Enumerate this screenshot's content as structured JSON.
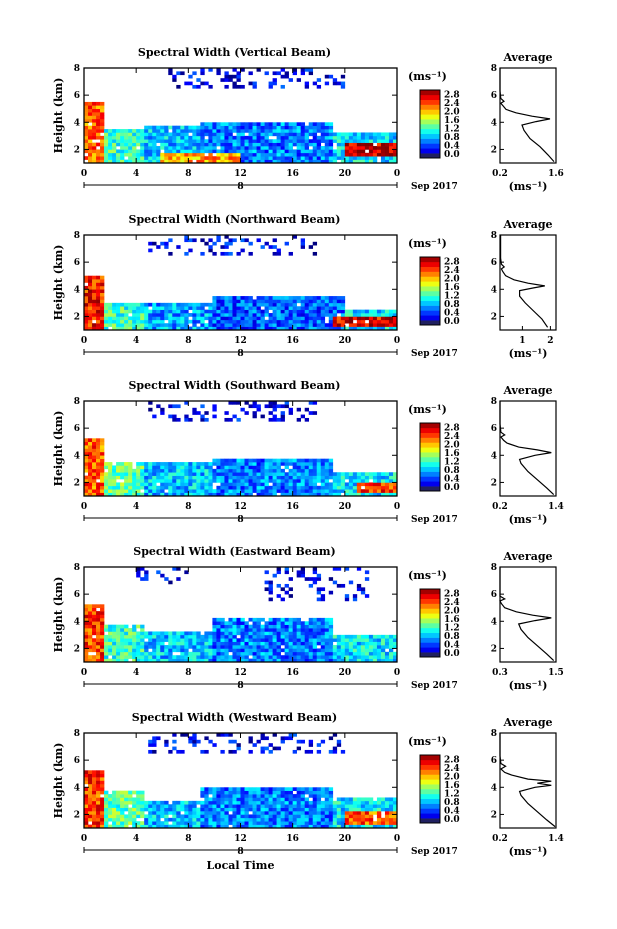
{
  "chart_data": [
    {
      "type": "heatmap",
      "title": "Spectral Width (Vertical Beam)",
      "ylabel": "Height (km)",
      "xticks": [
        "0",
        "4",
        "8",
        "12",
        "16",
        "20",
        "0"
      ],
      "day_label": "8",
      "date_label": "Sep 2017",
      "yticks": [
        "2",
        "4",
        "6",
        "8"
      ],
      "ylim": [
        1,
        8
      ],
      "xlim": [
        0,
        24
      ],
      "colorbar": {
        "unit": "(ms⁻¹)",
        "ticks": [
          "0.0",
          "0.4",
          "0.8",
          "1.2",
          "1.6",
          "2.0",
          "2.4",
          "2.8"
        ]
      },
      "average": {
        "title": "Average",
        "xticks": [
          "0.2",
          "1.6"
        ],
        "xlim": [
          0.2,
          1.6
        ],
        "yticks": [
          "2",
          "4",
          "6",
          "8"
        ],
        "xlabel": "(ms⁻¹)",
        "profile": [
          [
            1.55,
            1.1
          ],
          [
            1.4,
            1.6
          ],
          [
            1.2,
            2.2
          ],
          [
            0.95,
            2.8
          ],
          [
            0.8,
            3.4
          ],
          [
            0.75,
            3.8
          ],
          [
            1.1,
            4.05
          ],
          [
            1.45,
            4.25
          ],
          [
            1.0,
            4.45
          ],
          [
            0.6,
            4.7
          ],
          [
            0.35,
            4.95
          ],
          [
            0.28,
            5.2
          ],
          [
            0.22,
            5.4
          ],
          [
            0.3,
            5.55
          ],
          [
            0.22,
            5.75
          ],
          [
            0.2,
            6.3
          ],
          [
            0.2,
            8.0
          ]
        ]
      },
      "blocks": [
        {
          "t0": 0,
          "t1": 1.5,
          "h0": 1.0,
          "h1": 5.5,
          "v": 2.2
        },
        {
          "t0": 1.5,
          "t1": 4.5,
          "h0": 1.0,
          "h1": 3.5,
          "v": 1.2
        },
        {
          "t0": 4.5,
          "t1": 9,
          "h0": 1.0,
          "h1": 3.8,
          "v": 0.9
        },
        {
          "t0": 9,
          "t1": 19,
          "h0": 1.0,
          "h1": 4.1,
          "v": 0.7
        },
        {
          "t0": 19,
          "t1": 24,
          "h0": 1.0,
          "h1": 3.3,
          "v": 1.0
        },
        {
          "t0": 6,
          "t1": 12,
          "h0": 1.0,
          "h1": 1.8,
          "v": 2.0
        },
        {
          "t0": 20,
          "t1": 24,
          "h0": 1.4,
          "h1": 2.6,
          "v": 2.6
        },
        {
          "t0": 6,
          "t1": 20,
          "h0": 6.5,
          "h1": 8.0,
          "v": 0.3
        }
      ]
    },
    {
      "type": "heatmap",
      "title": "Spectral Width (Northward Beam)",
      "ylabel": "Height (km)",
      "xticks": [
        "0",
        "4",
        "8",
        "12",
        "16",
        "20",
        "0"
      ],
      "day_label": "8",
      "date_label": "Sep 2017",
      "yticks": [
        "2",
        "4",
        "6",
        "8"
      ],
      "ylim": [
        1,
        8
      ],
      "xlim": [
        0,
        24
      ],
      "colorbar": {
        "unit": "(ms⁻¹)",
        "ticks": [
          "0.0",
          "0.4",
          "0.8",
          "1.2",
          "1.6",
          "2.0",
          "2.4",
          "2.8"
        ]
      },
      "average": {
        "title": "Average",
        "xticks": [
          "1",
          "2"
        ],
        "xlim": [
          0.2,
          2.2
        ],
        "yticks": [
          "2",
          "4",
          "6",
          "8"
        ],
        "xlabel": "(ms⁻¹)",
        "profile": [
          [
            1.9,
            1.2
          ],
          [
            1.7,
            1.8
          ],
          [
            1.4,
            2.4
          ],
          [
            1.1,
            3.0
          ],
          [
            0.9,
            3.5
          ],
          [
            0.9,
            3.9
          ],
          [
            1.4,
            4.1
          ],
          [
            1.8,
            4.25
          ],
          [
            1.2,
            4.45
          ],
          [
            0.7,
            4.7
          ],
          [
            0.4,
            5.0
          ],
          [
            0.3,
            5.3
          ],
          [
            0.25,
            5.5
          ],
          [
            0.35,
            5.65
          ],
          [
            0.25,
            5.85
          ],
          [
            0.22,
            6.3
          ],
          [
            0.22,
            8.0
          ]
        ]
      },
      "blocks": [
        {
          "t0": 0,
          "t1": 1.5,
          "h0": 1.0,
          "h1": 5.0,
          "v": 2.4
        },
        {
          "t0": 1.5,
          "t1": 4.5,
          "h0": 1.0,
          "h1": 3.0,
          "v": 1.2
        },
        {
          "t0": 4.5,
          "t1": 10,
          "h0": 1.0,
          "h1": 3.0,
          "v": 0.8
        },
        {
          "t0": 10,
          "t1": 20,
          "h0": 1.0,
          "h1": 3.4,
          "v": 0.6
        },
        {
          "t0": 20,
          "t1": 24,
          "h0": 1.0,
          "h1": 2.6,
          "v": 1.0
        },
        {
          "t0": 19,
          "t1": 24,
          "h0": 1.2,
          "h1": 1.9,
          "v": 2.5
        },
        {
          "t0": 5,
          "t1": 18,
          "h0": 6.5,
          "h1": 8.0,
          "v": 0.3
        }
      ]
    },
    {
      "type": "heatmap",
      "title": "Spectral Width (Southward Beam)",
      "ylabel": "Height (km)",
      "xticks": [
        "0",
        "4",
        "8",
        "12",
        "16",
        "20",
        "0"
      ],
      "day_label": "8",
      "date_label": "Sep 2017",
      "yticks": [
        "2",
        "4",
        "6",
        "8"
      ],
      "ylim": [
        1,
        8
      ],
      "xlim": [
        0,
        24
      ],
      "colorbar": {
        "unit": "(ms⁻¹)",
        "ticks": [
          "0.0",
          "0.4",
          "0.8",
          "1.2",
          "1.6",
          "2.0",
          "2.4",
          "2.8"
        ]
      },
      "average": {
        "title": "Average",
        "xticks": [
          "0.2",
          "1.4"
        ],
        "xlim": [
          0.2,
          1.4
        ],
        "yticks": [
          "2",
          "4",
          "6",
          "8"
        ],
        "xlabel": "(ms⁻¹)",
        "profile": [
          [
            1.35,
            1.1
          ],
          [
            1.2,
            1.6
          ],
          [
            1.0,
            2.2
          ],
          [
            0.8,
            2.8
          ],
          [
            0.65,
            3.4
          ],
          [
            0.62,
            3.7
          ],
          [
            0.95,
            4.0
          ],
          [
            1.3,
            4.2
          ],
          [
            1.0,
            4.4
          ],
          [
            0.6,
            4.6
          ],
          [
            0.35,
            4.9
          ],
          [
            0.28,
            5.1
          ],
          [
            0.22,
            5.35
          ],
          [
            0.3,
            5.5
          ],
          [
            0.22,
            5.7
          ],
          [
            0.2,
            6.3
          ],
          [
            0.2,
            8.0
          ]
        ]
      },
      "blocks": [
        {
          "t0": 0,
          "t1": 1.5,
          "h0": 1.0,
          "h1": 5.3,
          "v": 2.2
        },
        {
          "t0": 1.5,
          "t1": 4.5,
          "h0": 1.0,
          "h1": 3.6,
          "v": 1.3
        },
        {
          "t0": 4.5,
          "t1": 10,
          "h0": 1.0,
          "h1": 3.4,
          "v": 0.9
        },
        {
          "t0": 10,
          "t1": 19,
          "h0": 1.0,
          "h1": 3.8,
          "v": 0.7
        },
        {
          "t0": 19,
          "t1": 24,
          "h0": 1.0,
          "h1": 2.8,
          "v": 1.0
        },
        {
          "t0": 21,
          "t1": 24,
          "h0": 1.2,
          "h1": 2.0,
          "v": 2.3
        },
        {
          "t0": 5,
          "t1": 18,
          "h0": 6.6,
          "h1": 8.0,
          "v": 0.3
        }
      ]
    },
    {
      "type": "heatmap",
      "title": "Spectral Width (Eastward Beam)",
      "ylabel": "Height (km)",
      "xticks": [
        "0",
        "4",
        "8",
        "12",
        "16",
        "20",
        "0"
      ],
      "day_label": "8",
      "date_label": "Sep 2017",
      "yticks": [
        "2",
        "4",
        "6",
        "8"
      ],
      "ylim": [
        1,
        8
      ],
      "xlim": [
        0,
        24
      ],
      "colorbar": {
        "unit": "(ms⁻¹)",
        "ticks": [
          "0.0",
          "0.4",
          "0.8",
          "1.2",
          "1.6",
          "2.0",
          "2.4",
          "2.8"
        ]
      },
      "average": {
        "title": "Average",
        "xticks": [
          "0.3",
          "1.5"
        ],
        "xlim": [
          0.3,
          1.5
        ],
        "yticks": [
          "2",
          "4",
          "6",
          "8"
        ],
        "xlabel": "(ms⁻¹)",
        "profile": [
          [
            1.45,
            1.1
          ],
          [
            1.3,
            1.6
          ],
          [
            1.1,
            2.2
          ],
          [
            0.9,
            2.8
          ],
          [
            0.75,
            3.4
          ],
          [
            0.7,
            3.8
          ],
          [
            1.05,
            4.05
          ],
          [
            1.4,
            4.25
          ],
          [
            1.0,
            4.45
          ],
          [
            0.65,
            4.7
          ],
          [
            0.4,
            5.0
          ],
          [
            0.33,
            5.3
          ],
          [
            0.3,
            5.5
          ],
          [
            0.4,
            5.65
          ],
          [
            0.3,
            5.85
          ],
          [
            0.3,
            6.3
          ],
          [
            0.3,
            8.0
          ]
        ]
      },
      "blocks": [
        {
          "t0": 0,
          "t1": 1.5,
          "h0": 1.0,
          "h1": 5.2,
          "v": 2.3
        },
        {
          "t0": 1.5,
          "t1": 4.5,
          "h0": 1.0,
          "h1": 3.7,
          "v": 1.2
        },
        {
          "t0": 4.5,
          "t1": 10,
          "h0": 1.0,
          "h1": 3.2,
          "v": 0.9
        },
        {
          "t0": 10,
          "t1": 19,
          "h0": 1.0,
          "h1": 4.2,
          "v": 0.7
        },
        {
          "t0": 19,
          "t1": 24,
          "h0": 1.0,
          "h1": 3.0,
          "v": 1.0
        },
        {
          "t0": 4,
          "t1": 8,
          "h0": 6.8,
          "h1": 8.0,
          "v": 0.3
        },
        {
          "t0": 14,
          "t1": 22,
          "h0": 5.6,
          "h1": 8.0,
          "v": 0.3
        }
      ]
    },
    {
      "type": "heatmap",
      "title": "Spectral Width (Westward Beam)",
      "ylabel": "Height (km)",
      "xticks": [
        "0",
        "4",
        "8",
        "12",
        "16",
        "20",
        "0"
      ],
      "day_label": "8",
      "date_label": "Sep 2017",
      "xlabel": "Local Time",
      "yticks": [
        "2",
        "4",
        "6",
        "8"
      ],
      "ylim": [
        1,
        8
      ],
      "xlim": [
        0,
        24
      ],
      "colorbar": {
        "unit": "(ms⁻¹)",
        "ticks": [
          "0.0",
          "0.4",
          "0.8",
          "1.2",
          "1.6",
          "2.0",
          "2.4",
          "2.8"
        ]
      },
      "average": {
        "title": "Average",
        "xticks": [
          "0.2",
          "1.4"
        ],
        "xlim": [
          0.2,
          1.4
        ],
        "yticks": [
          "2",
          "4",
          "6",
          "8"
        ],
        "xlabel": "(ms⁻¹)",
        "profile": [
          [
            1.38,
            1.1
          ],
          [
            1.2,
            1.6
          ],
          [
            1.0,
            2.2
          ],
          [
            0.8,
            2.8
          ],
          [
            0.65,
            3.4
          ],
          [
            0.62,
            3.7
          ],
          [
            0.95,
            4.0
          ],
          [
            1.3,
            4.15
          ],
          [
            1.0,
            4.3
          ],
          [
            1.3,
            4.45
          ],
          [
            0.8,
            4.6
          ],
          [
            0.45,
            4.9
          ],
          [
            0.3,
            5.1
          ],
          [
            0.22,
            5.35
          ],
          [
            0.32,
            5.55
          ],
          [
            0.22,
            5.75
          ],
          [
            0.2,
            6.3
          ],
          [
            0.2,
            8.0
          ]
        ]
      },
      "blocks": [
        {
          "t0": 0,
          "t1": 1.5,
          "h0": 1.0,
          "h1": 5.3,
          "v": 2.3
        },
        {
          "t0": 1.5,
          "t1": 4.5,
          "h0": 1.0,
          "h1": 3.8,
          "v": 1.3
        },
        {
          "t0": 4.5,
          "t1": 9,
          "h0": 1.0,
          "h1": 3.0,
          "v": 0.9
        },
        {
          "t0": 9,
          "t1": 19,
          "h0": 1.0,
          "h1": 3.9,
          "v": 0.7
        },
        {
          "t0": 19,
          "t1": 24,
          "h0": 1.0,
          "h1": 3.2,
          "v": 1.0
        },
        {
          "t0": 20,
          "t1": 24,
          "h0": 1.2,
          "h1": 2.2,
          "v": 2.2
        },
        {
          "t0": 5,
          "t1": 20,
          "h0": 6.5,
          "h1": 8.0,
          "v": 0.3
        }
      ]
    }
  ]
}
